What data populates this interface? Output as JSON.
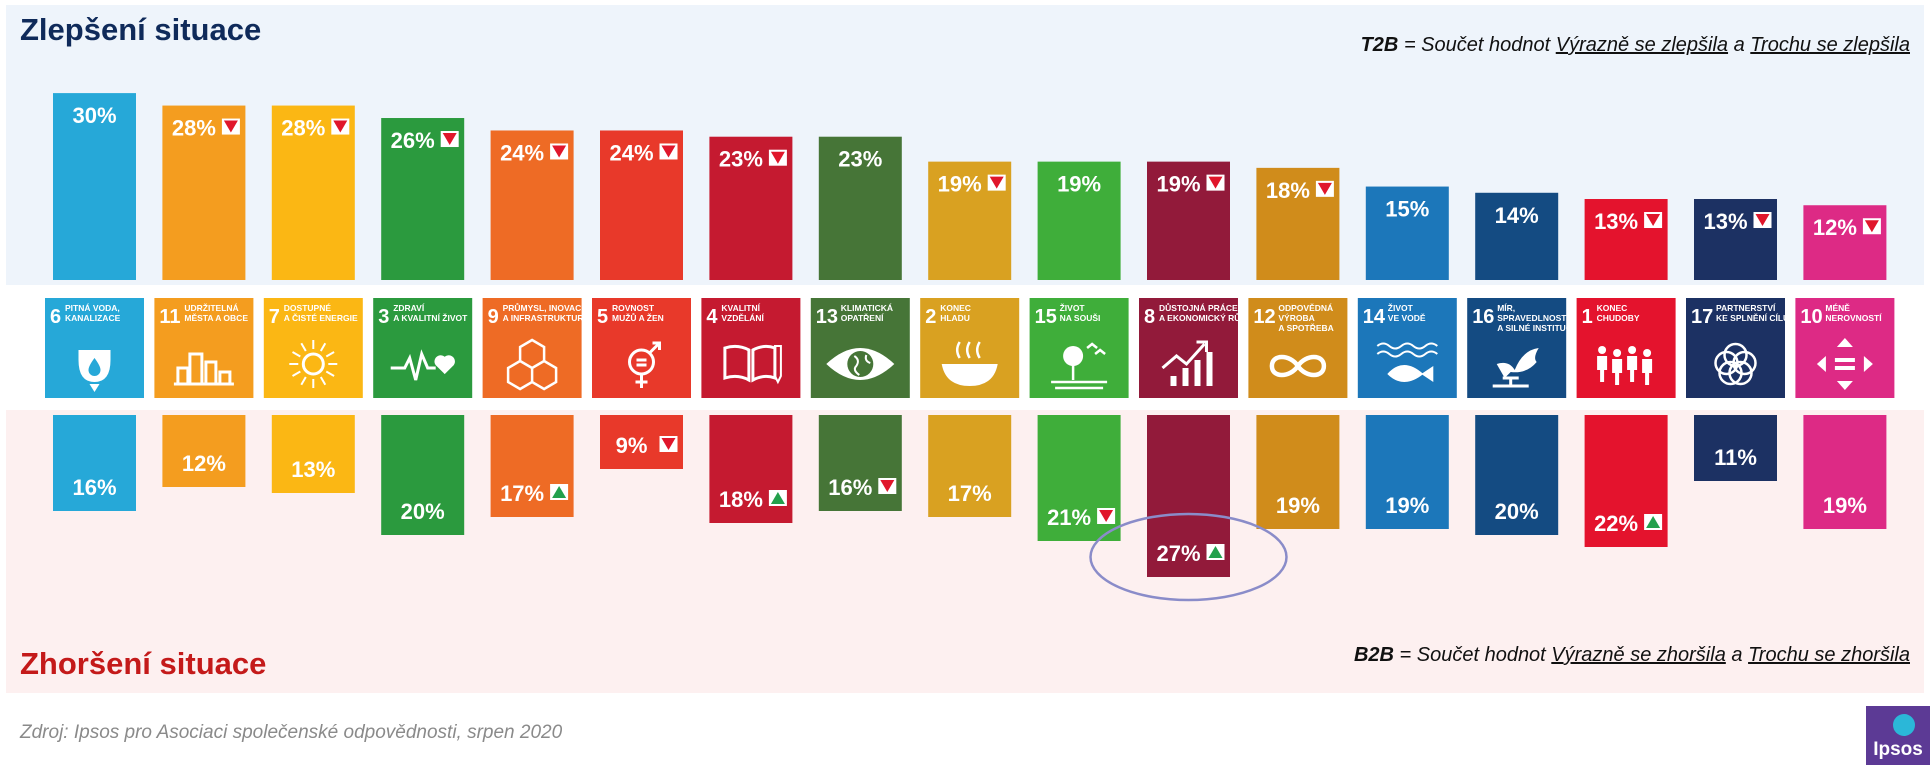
{
  "headings": {
    "top": "Zlepšení situace",
    "bottom": "Zhoršení situace"
  },
  "notes": {
    "top": {
      "key": "T2B",
      "eq": " = Součet hodnot ",
      "a": "Výrazně se zlepšila",
      "and": " a ",
      "b": "Trochu se zlepšila"
    },
    "bottom": {
      "key": "B2B",
      "eq": " = Součet hodnot ",
      "a": "Výrazně se zhoršila",
      "and": " a ",
      "b": "Trochu se zhoršila"
    }
  },
  "source": "Zdroj: Ipsos pro Asociaci společenské odpovědnosti, srpen 2020",
  "logo": "Ipsos",
  "colors": {
    "marker_down": "#e0162b",
    "marker_up": "#23a04c",
    "highlight_ring": "#8a8cc9"
  },
  "chart_data": {
    "type": "bar",
    "title": "",
    "categories": [
      {
        "num": "6",
        "line1": "PITNÁ VODA,",
        "line2": "KANALIZACE",
        "icon": "water-drop-icon",
        "color": "#26a8d8"
      },
      {
        "num": "11",
        "line1": "UDRŽITELNÁ",
        "line2": "MĚSTA A OBCE",
        "icon": "city-icon",
        "color": "#f49d1f"
      },
      {
        "num": "7",
        "line1": "DOSTUPNÉ",
        "line2": "A ČISTÉ ENERGIE",
        "icon": "sun-icon",
        "color": "#fbb714"
      },
      {
        "num": "3",
        "line1": "ZDRAVÍ",
        "line2": "A KVALITNÍ ŽIVOT",
        "icon": "heartbeat-icon",
        "color": "#2b9a3e"
      },
      {
        "num": "9",
        "line1": "PRŮMYSL, INOVACE",
        "line2": "A INFRASTRUKTURA",
        "icon": "cubes-icon",
        "color": "#ee6b25"
      },
      {
        "num": "5",
        "line1": "ROVNOST",
        "line2": "MUŽŮ A ŽEN",
        "icon": "gender-icon",
        "color": "#e8392a"
      },
      {
        "num": "4",
        "line1": "KVALITNÍ",
        "line2": "VZDĚLÁNÍ",
        "icon": "book-icon",
        "color": "#c51a30"
      },
      {
        "num": "13",
        "line1": "KLIMATICKÁ",
        "line2": "OPATŘENÍ",
        "icon": "eye-globe-icon",
        "color": "#467537"
      },
      {
        "num": "2",
        "line1": "KONEC",
        "line2": "HLADU",
        "icon": "bowl-icon",
        "color": "#d9a121"
      },
      {
        "num": "15",
        "line1": "ŽIVOT",
        "line2": "NA SOUŠI",
        "icon": "tree-icon",
        "color": "#3fae3a"
      },
      {
        "num": "8",
        "line1": "DŮSTOJNÁ PRÁCE",
        "line2": "A EKONOMICKÝ RŮST",
        "icon": "growth-chart-icon",
        "color": "#921a3a"
      },
      {
        "num": "12",
        "line1": "ODPOVĚDNÁ",
        "line2": "VÝROBA",
        "line3": "A SPOTŘEBA",
        "icon": "infinity-icon",
        "color": "#d08c1b"
      },
      {
        "num": "14",
        "line1": "ŽIVOT",
        "line2": "VE VODĚ",
        "icon": "fish-icon",
        "color": "#1c77ba"
      },
      {
        "num": "16",
        "line1": "MÍR,",
        "line2": "SPRAVEDLNOST",
        "line3": "A SILNÉ INSTITUCE",
        "icon": "dove-icon",
        "color": "#144b82"
      },
      {
        "num": "1",
        "line1": "KONEC",
        "line2": "CHUDOBY",
        "icon": "family-icon",
        "color": "#e4132d"
      },
      {
        "num": "17",
        "line1": "PARTNERSTVÍ",
        "line2": "KE SPLNĚNÍ CÍLŮ",
        "icon": "rings-icon",
        "color": "#1c3163"
      },
      {
        "num": "10",
        "line1": "MÉNĚ",
        "line2": "NEROVNOSTÍ",
        "icon": "equality-arrows-icon",
        "color": "#dd2a85"
      }
    ],
    "series": [
      {
        "name": "T2B",
        "values": [
          30,
          28,
          28,
          26,
          24,
          24,
          23,
          23,
          19,
          19,
          19,
          18,
          15,
          14,
          13,
          13,
          12
        ],
        "markers": [
          "",
          "down",
          "down",
          "down",
          "down",
          "down",
          "down",
          "",
          "down",
          "",
          "down",
          "down",
          "",
          "",
          "down",
          "down",
          "down"
        ]
      },
      {
        "name": "B2B",
        "values": [
          16,
          12,
          13,
          20,
          17,
          9,
          18,
          16,
          17,
          21,
          27,
          19,
          19,
          20,
          22,
          11,
          19
        ],
        "markers": [
          "",
          "",
          "",
          "",
          "up",
          "down",
          "up",
          "down",
          "",
          "down",
          "up",
          "",
          "",
          "",
          "up",
          "",
          ""
        ]
      }
    ],
    "unit": "%",
    "highlight": {
      "series": "B2B",
      "category_index": 10
    }
  }
}
